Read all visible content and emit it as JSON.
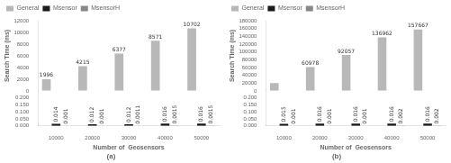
{
  "chart_data": [
    {
      "type": "bar",
      "title": "(a)",
      "xlabel": "Number of  Geosensors",
      "ylabel": "Search Time (ms)",
      "categories": [
        10000,
        20000,
        30000,
        40000,
        50000
      ],
      "series": [
        {
          "name": "General",
          "color": "#b8b8b8",
          "values": [
            1996,
            4215,
            6377,
            8571,
            10702
          ]
        },
        {
          "name": "Msensor",
          "color": "#1a1a1a",
          "axis": "y2",
          "values": [
            0.014,
            0.012,
            0.012,
            0.016,
            0.016
          ]
        },
        {
          "name": "MsensorH",
          "color": "#888888",
          "axis": "y2",
          "values": [
            0.001,
            0.001,
            0.0011,
            0.0015,
            0.0015
          ]
        }
      ],
      "ylim": [
        0,
        12000
      ],
      "yticks": [
        0,
        2000,
        4000,
        6000,
        8000,
        10000,
        12000
      ],
      "y2lim": [
        0,
        0.25
      ],
      "y2ticks": [
        {
          "value": 0,
          "label": "0.000"
        },
        {
          "value": 0.05,
          "label": "0.050"
        },
        {
          "value": 0.1,
          "label": "0.100"
        },
        {
          "value": 0.15,
          "label": "0.150"
        },
        {
          "value": 0.2,
          "label": "0.200"
        }
      ],
      "grid": false,
      "legend": "upper left",
      "data_labels": true
    },
    {
      "type": "bar",
      "title": "(b)",
      "xlabel": "Number of  Geosensors",
      "ylabel": "Search Time (ms)",
      "categories": [
        10000,
        20000,
        30000,
        40000,
        50000
      ],
      "series": [
        {
          "name": "General",
          "color": "#b8b8b8",
          "values": [
            20000,
            60978,
            92057,
            136962,
            157667
          ],
          "value_labels": [
            null,
            "60978",
            "92057",
            "136962",
            "157667"
          ]
        },
        {
          "name": "Msensor",
          "color": "#1a1a1a",
          "axis": "y2",
          "values": [
            0.015,
            0.016,
            0.016,
            0.016,
            0.016
          ]
        },
        {
          "name": "MsensorH",
          "color": "#888888",
          "axis": "y2",
          "values": [
            0.001,
            0.001,
            0.001,
            0.002,
            0.002
          ]
        }
      ],
      "ylim": [
        0,
        180000
      ],
      "yticks": [
        0,
        20000,
        40000,
        60000,
        80000,
        100000,
        120000,
        140000,
        160000,
        180000
      ],
      "y2lim": [
        0,
        0.25
      ],
      "y2ticks": [
        {
          "value": 0,
          "label": "0.000"
        },
        {
          "value": 0.05,
          "label": "0.050"
        },
        {
          "value": 0.1,
          "label": "0.100"
        },
        {
          "value": 0.15,
          "label": "0.150"
        },
        {
          "value": 0.2,
          "label": "0.200"
        }
      ],
      "grid": false,
      "legend": "upper left",
      "data_labels": true
    }
  ]
}
